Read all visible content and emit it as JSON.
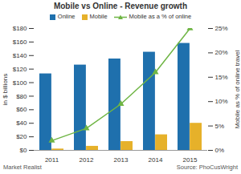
{
  "chart_data": {
    "type": "bar",
    "title": "Mobile vs Online - Revenue growth",
    "categories": [
      "2011",
      "2012",
      "2013",
      "2014",
      "2015"
    ],
    "series": [
      {
        "name": "Online",
        "color": "#1f70ad",
        "values": [
          113,
          126,
          135,
          145,
          158
        ]
      },
      {
        "name": "Mobile",
        "color": "#e6b12a",
        "values": [
          2,
          6,
          13,
          23,
          40
        ]
      },
      {
        "name": "Mobile as a % of online",
        "type": "line",
        "axis": "y2",
        "color": "#6fb544",
        "marker": "triangle",
        "values": [
          2,
          4.5,
          9.5,
          16,
          25
        ]
      }
    ],
    "y_label": "in $ billions",
    "y2_label": "Mobile as % of online travel",
    "ylim": [
      0,
      180
    ],
    "yticks": [
      {
        "value": 0,
        "label": "$0"
      },
      {
        "value": 20,
        "label": "$20"
      },
      {
        "value": 40,
        "label": "$40"
      },
      {
        "value": 60,
        "label": "$60"
      },
      {
        "value": 80,
        "label": "$80"
      },
      {
        "value": 100,
        "label": "$100"
      },
      {
        "value": 120,
        "label": "$120"
      },
      {
        "value": 140,
        "label": "$140"
      },
      {
        "value": 160,
        "label": "$160"
      },
      {
        "value": 180,
        "label": "$180"
      }
    ],
    "y2lim": [
      0,
      25
    ],
    "y2ticks": [
      {
        "value": 0,
        "label": "0%"
      },
      {
        "value": 5,
        "label": "5%"
      },
      {
        "value": 10,
        "label": "10%"
      },
      {
        "value": 15,
        "label": "15%"
      },
      {
        "value": 20,
        "label": "20%"
      },
      {
        "value": 25,
        "label": "25%"
      }
    ],
    "grid": false,
    "legend": "top",
    "annotations": [
      "Market Realist",
      "Source: PhoCusWright"
    ]
  }
}
